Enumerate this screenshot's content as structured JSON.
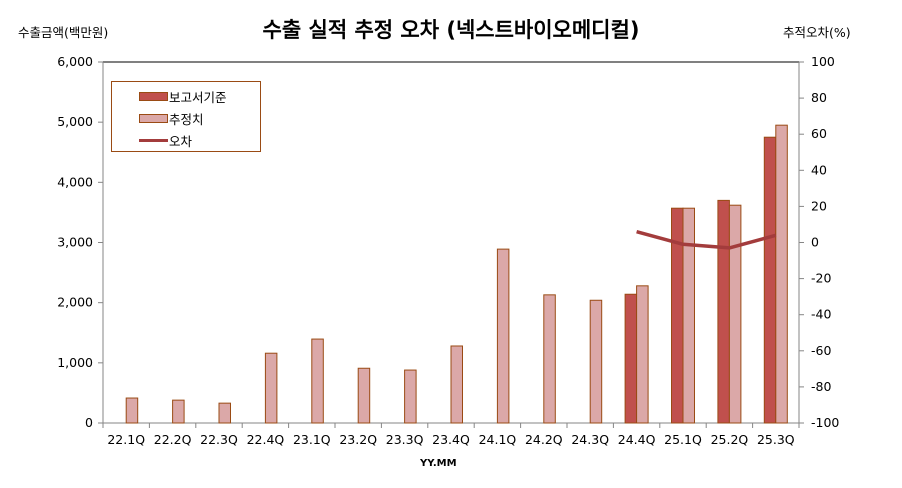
{
  "title": "수출 실적 추정 오차 (넥스트바이오메디컬)",
  "axes": {
    "left_label": "수출금액(백만원)",
    "right_label": "추적오차(%)",
    "x_label": "YY.MM",
    "left_ticks": [
      "6,000",
      "5,000",
      "4,000",
      "3,000",
      "2,000",
      "1,000",
      "0"
    ],
    "right_ticks": [
      "100",
      "80",
      "60",
      "40",
      "20",
      "0",
      "-20",
      "-40",
      "-60",
      "-80",
      "-100"
    ]
  },
  "legend": {
    "items": [
      {
        "label": "보고서기준",
        "type": "bar",
        "color": "#c0504d"
      },
      {
        "label": "추정치",
        "type": "bar",
        "color": "#d9a7a7"
      },
      {
        "label": "오차",
        "type": "line",
        "color": "#a33c3c"
      }
    ]
  },
  "colors": {
    "report_bar": "#c0504d",
    "estimate_bar": "#dba8a8",
    "bar_border": "#9a4b14",
    "error_line": "#a33c3c",
    "axis": "#868686"
  },
  "chart_data": {
    "type": "bar+line",
    "title": "수출 실적 추정 오차 (넥스트바이오메디컬)",
    "xlabel": "YY.MM",
    "ylabel": "수출금액(백만원)",
    "y2label": "추적오차(%)",
    "ylim": [
      0,
      6000
    ],
    "y2lim": [
      -100,
      100
    ],
    "grid": false,
    "legend_position": "top-left-inside",
    "categories": [
      "22.1Q",
      "22.2Q",
      "22.3Q",
      "22.4Q",
      "23.1Q",
      "23.2Q",
      "23.3Q",
      "23.4Q",
      "24.1Q",
      "24.2Q",
      "24.3Q",
      "24.4Q",
      "25.1Q",
      "25.2Q",
      "25.3Q"
    ],
    "series": [
      {
        "name": "보고서기준",
        "type": "bar",
        "axis": "left",
        "values": [
          null,
          null,
          null,
          null,
          null,
          null,
          null,
          null,
          null,
          null,
          null,
          2140,
          3570,
          3700,
          4750
        ]
      },
      {
        "name": "추정치",
        "type": "bar",
        "axis": "left",
        "values": [
          415,
          380,
          330,
          1160,
          1395,
          910,
          880,
          1280,
          2890,
          2130,
          2040,
          2280,
          3570,
          3620,
          4950
        ]
      },
      {
        "name": "오차",
        "type": "line",
        "axis": "right",
        "values": [
          null,
          null,
          null,
          null,
          null,
          null,
          null,
          null,
          null,
          null,
          null,
          6,
          -1,
          -3,
          4
        ]
      }
    ]
  }
}
